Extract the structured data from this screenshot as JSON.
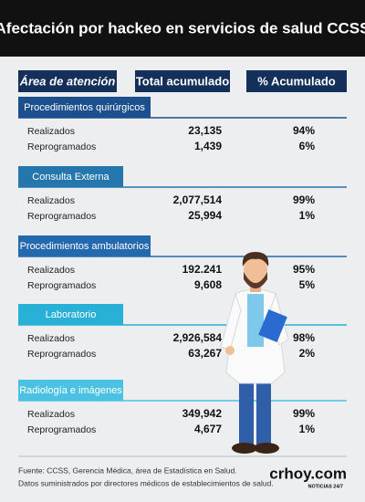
{
  "header": {
    "title": "Afectación por hackeo en servicios de salud CCSS"
  },
  "table": {
    "columns": [
      "Área de atención",
      "Total acumulado",
      "% Acumulado"
    ],
    "sections": [
      {
        "title": "Procedimientos quirúrgicos",
        "rows": [
          {
            "label": "Realizados",
            "total": "23,135",
            "percent": "94%"
          },
          {
            "label": "Reprogramados",
            "total": "1,439",
            "percent": "6%"
          }
        ]
      },
      {
        "title": "Consulta Externa",
        "rows": [
          {
            "label": "Realizados",
            "total": "2,077,514",
            "percent": "99%"
          },
          {
            "label": "Reprogramados",
            "total": "25,994",
            "percent": "1%"
          }
        ]
      },
      {
        "title": "Procedimientos ambulatorios",
        "rows": [
          {
            "label": "Realizados",
            "total": "192.241",
            "percent": "95%"
          },
          {
            "label": "Reprogramados",
            "total": "9,608",
            "percent": "5%"
          }
        ]
      },
      {
        "title": "Laboratorio",
        "rows": [
          {
            "label": "Realizados",
            "total": "2,926,584",
            "percent": "98%"
          },
          {
            "label": "Reprogramados",
            "total": "63,267",
            "percent": "2%"
          }
        ]
      },
      {
        "title": "Radiología e imágenes",
        "rows": [
          {
            "label": "Realizados",
            "total": "349,942",
            "percent": "99%"
          },
          {
            "label": "Reprogramados",
            "total": "4,677",
            "percent": "1%"
          }
        ]
      }
    ]
  },
  "footer": {
    "source": [
      "Fuente: CCSS, Gerencia Médica, área de Estadística en Salud.",
      "Datos suministrados por directores médicos de establecimientos de salud."
    ],
    "logo": "crhoy.com",
    "tagline": "NOTICIAS 24/7"
  }
}
